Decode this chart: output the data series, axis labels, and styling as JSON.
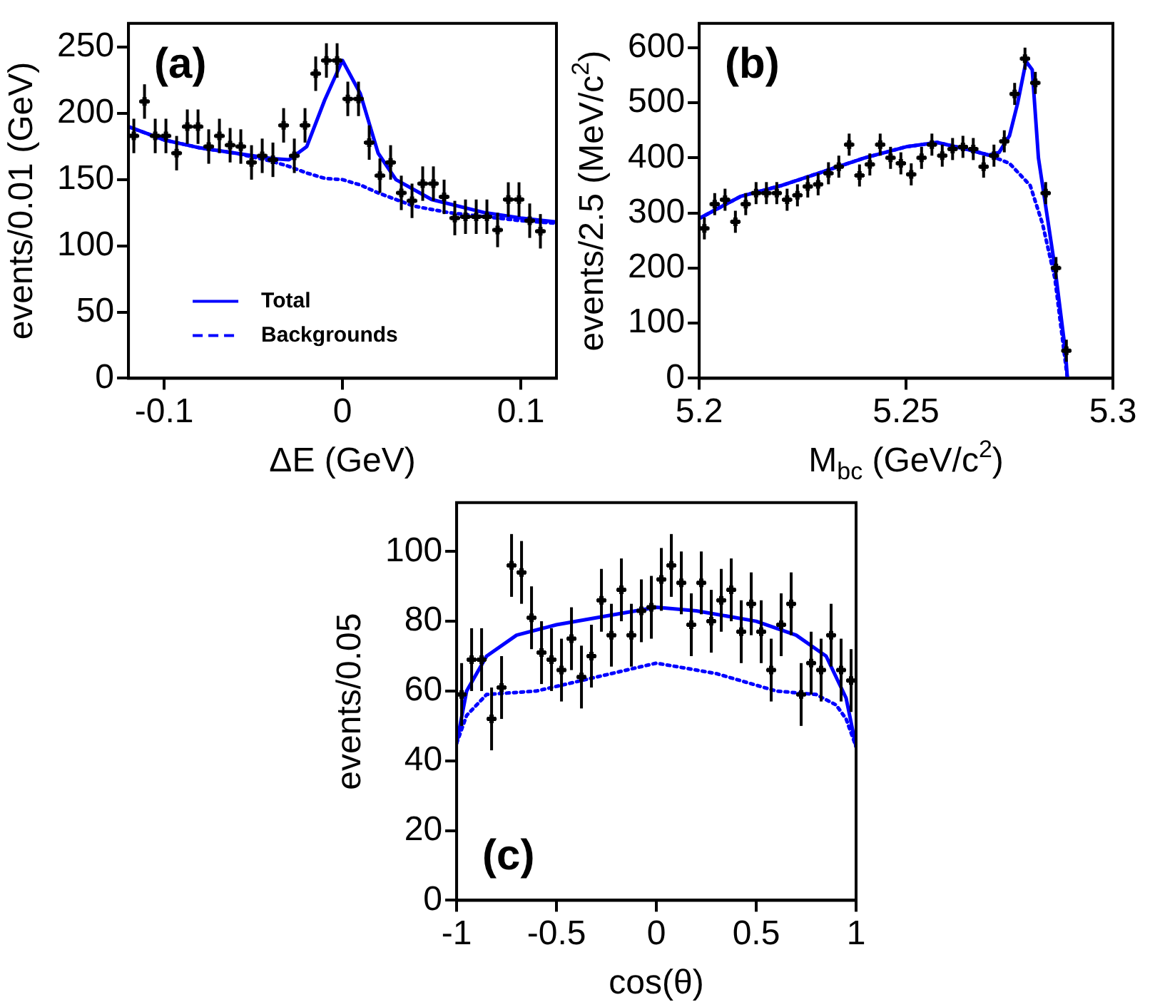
{
  "chart_data": [
    {
      "type": "scatter",
      "xlabel": "ΔE (GeV)",
      "ylabel": "events/0.01 (GeV)",
      "annotations": [
        "(a)"
      ],
      "xlim": [
        -0.12,
        0.12
      ],
      "ylim": [
        0,
        268
      ],
      "xticks": [
        -0.1,
        0,
        0.1
      ],
      "yticks": [
        0,
        50,
        100,
        150,
        200,
        250
      ],
      "grid": false,
      "legend": "bottom left",
      "series": [
        {
          "type": "scatter",
          "marker": "cross",
          "color": "#000000",
          "x": [
            -0.117,
            -0.111,
            -0.105,
            -0.099,
            -0.093,
            -0.087,
            -0.081,
            -0.075,
            -0.069,
            -0.063,
            -0.057,
            -0.051,
            -0.045,
            -0.039,
            -0.033,
            -0.027,
            -0.021,
            -0.015,
            -0.009,
            -0.003,
            0.003,
            0.009,
            0.015,
            0.021,
            0.027,
            0.033,
            0.039,
            0.045,
            0.051,
            0.057,
            0.063,
            0.069,
            0.075,
            0.081,
            0.087,
            0.093,
            0.099,
            0.105,
            0.111
          ],
          "values": [
            183,
            209,
            183,
            183,
            170,
            190,
            190,
            175,
            183,
            176,
            175,
            163,
            168,
            165,
            191,
            168,
            191,
            230,
            240,
            240,
            211,
            211,
            178,
            153,
            163,
            140,
            134,
            147,
            147,
            137,
            121,
            122,
            122,
            122,
            112,
            135,
            135,
            119,
            111
          ],
          "errors": [
            13,
            13,
            13,
            13,
            13,
            13,
            13,
            13,
            13,
            13,
            13,
            13,
            13,
            13,
            13,
            13,
            13,
            13,
            13,
            13,
            13,
            13,
            13,
            13,
            13,
            13,
            13,
            13,
            13,
            13,
            13,
            13,
            13,
            13,
            13,
            13,
            13,
            13,
            13
          ],
          "xerrors": [
            0.003,
            0.003,
            0.003,
            0.003,
            0.003,
            0.003,
            0.003,
            0.003,
            0.003,
            0.003,
            0.003,
            0.003,
            0.003,
            0.003,
            0.003,
            0.003,
            0.003,
            0.003,
            0.003,
            0.003,
            0.003,
            0.003,
            0.003,
            0.003,
            0.003,
            0.003,
            0.003,
            0.003,
            0.003,
            0.003,
            0.003,
            0.003,
            0.003,
            0.003,
            0.003,
            0.003,
            0.003,
            0.003,
            0.003
          ]
        },
        {
          "type": "line",
          "name": "Total",
          "color": "#0000ff",
          "line_style": "solid",
          "x": [
            -0.12,
            -0.1,
            -0.08,
            -0.06,
            -0.04,
            -0.03,
            -0.02,
            -0.01,
            0,
            0.01,
            0.02,
            0.03,
            0.05,
            0.08,
            0.1,
            0.12
          ],
          "values": [
            190,
            180,
            174,
            170,
            166,
            165,
            175,
            210,
            240,
            215,
            170,
            150,
            135,
            125,
            121,
            118
          ]
        },
        {
          "type": "line",
          "name": "Backgrounds",
          "color": "#0000ff",
          "line_style": "dotted",
          "x": [
            -0.12,
            -0.1,
            -0.08,
            -0.06,
            -0.04,
            -0.03,
            -0.02,
            -0.01,
            0,
            0.01,
            0.02,
            0.04,
            0.06,
            0.08,
            0.1,
            0.12
          ],
          "values": [
            190,
            180,
            174,
            170,
            164,
            160,
            155,
            151,
            150,
            146,
            140,
            130,
            125,
            122,
            119,
            117
          ]
        }
      ]
    },
    {
      "type": "scatter",
      "xlabel": "M$_{bc}$ (GeV/c$^{2}$)",
      "ylabel": "events/2.5 (MeV/c$^{2}$)",
      "annotations": [
        "(b)"
      ],
      "xlim": [
        5.2,
        5.3
      ],
      "ylim": [
        0,
        644
      ],
      "xticks": [
        5.2,
        5.25,
        5.3
      ],
      "yticks": [
        0,
        100,
        200,
        300,
        400,
        500,
        600
      ],
      "grid": false,
      "series": [
        {
          "type": "scatter",
          "marker": "cross",
          "color": "#000000",
          "x": [
            5.20125,
            5.20375,
            5.20625,
            5.20875,
            5.21125,
            5.21375,
            5.21625,
            5.21875,
            5.22125,
            5.22375,
            5.22625,
            5.22875,
            5.23125,
            5.23375,
            5.23625,
            5.23875,
            5.24125,
            5.24375,
            5.24625,
            5.24875,
            5.25125,
            5.25375,
            5.25625,
            5.25875,
            5.26125,
            5.26375,
            5.26625,
            5.26875,
            5.27125,
            5.27375,
            5.27625,
            5.27875,
            5.28125,
            5.28375,
            5.28625,
            5.28875
          ],
          "values": [
            272,
            316,
            324,
            284,
            316,
            336,
            336,
            336,
            324,
            332,
            348,
            352,
            372,
            384,
            424,
            368,
            388,
            424,
            400,
            390,
            370,
            400,
            424,
            404,
            416,
            420,
            416,
            384,
            404,
            430,
            516,
            580,
            536,
            336,
            200,
            50
          ],
          "errors": [
            20,
            20,
            20,
            20,
            20,
            20,
            20,
            20,
            20,
            20,
            20,
            20,
            20,
            20,
            20,
            20,
            20,
            20,
            20,
            20,
            20,
            20,
            20,
            20,
            20,
            20,
            20,
            20,
            20,
            20,
            20,
            20,
            20,
            20,
            20,
            20
          ],
          "xerrors": [
            0.00125,
            0.00125,
            0.00125,
            0.00125,
            0.00125,
            0.00125,
            0.00125,
            0.00125,
            0.00125,
            0.00125,
            0.00125,
            0.00125,
            0.00125,
            0.00125,
            0.00125,
            0.00125,
            0.00125,
            0.00125,
            0.00125,
            0.00125,
            0.00125,
            0.00125,
            0.00125,
            0.00125,
            0.00125,
            0.00125,
            0.00125,
            0.00125,
            0.00125,
            0.00125,
            0.00125,
            0.00125,
            0.00125,
            0.00125,
            0.00125,
            0.00125
          ]
        },
        {
          "type": "line",
          "color": "#0000ff",
          "line_style": "solid",
          "x": [
            5.2,
            5.21,
            5.22,
            5.23,
            5.24,
            5.25,
            5.2575,
            5.265,
            5.27,
            5.2725,
            5.275,
            5.277,
            5.279,
            5.2805,
            5.282,
            5.284,
            5.286,
            5.2885,
            5.289
          ],
          "values": [
            290,
            330,
            350,
            375,
            400,
            420,
            428,
            415,
            405,
            410,
            440,
            500,
            575,
            560,
            400,
            300,
            200,
            50,
            0
          ]
        },
        {
          "type": "line",
          "color": "#0000ff",
          "line_style": "dotted",
          "x": [
            5.2,
            5.21,
            5.22,
            5.23,
            5.24,
            5.25,
            5.2575,
            5.265,
            5.27,
            5.275,
            5.28,
            5.283,
            5.286,
            5.289
          ],
          "values": [
            290,
            330,
            350,
            375,
            400,
            420,
            428,
            415,
            405,
            390,
            350,
            280,
            180,
            0
          ]
        }
      ]
    },
    {
      "type": "scatter",
      "xlabel": "cos(θ)",
      "ylabel": "events/0.05",
      "annotations": [
        "(c)"
      ],
      "xlim": [
        -1,
        1
      ],
      "ylim": [
        0,
        114
      ],
      "xticks": [
        -1,
        -0.5,
        0,
        0.5,
        1
      ],
      "yticks": [
        0,
        20,
        40,
        60,
        80,
        100
      ],
      "grid": false,
      "series": [
        {
          "type": "scatter",
          "marker": "cross",
          "color": "#000000",
          "x": [
            -0.975,
            -0.925,
            -0.875,
            -0.825,
            -0.775,
            -0.725,
            -0.675,
            -0.625,
            -0.575,
            -0.525,
            -0.475,
            -0.425,
            -0.375,
            -0.325,
            -0.275,
            -0.225,
            -0.175,
            -0.125,
            -0.075,
            -0.025,
            0.025,
            0.075,
            0.125,
            0.175,
            0.225,
            0.275,
            0.325,
            0.375,
            0.425,
            0.475,
            0.525,
            0.575,
            0.625,
            0.675,
            0.725,
            0.775,
            0.825,
            0.875,
            0.925,
            0.975
          ],
          "values": [
            59,
            69,
            69,
            52,
            61,
            96,
            94,
            81,
            71,
            69,
            66,
            75,
            64,
            70,
            86,
            76,
            89,
            76,
            83,
            84,
            92,
            96,
            91,
            79,
            91,
            80,
            86,
            89,
            77,
            85,
            77,
            66,
            79,
            85,
            59,
            68,
            66,
            76,
            66,
            63
          ],
          "errors": [
            9,
            9,
            9,
            9,
            9,
            9,
            9,
            9,
            9,
            9,
            9,
            9,
            9,
            9,
            9,
            9,
            9,
            9,
            9,
            9,
            9,
            9,
            9,
            9,
            9,
            9,
            9,
            9,
            9,
            9,
            9,
            9,
            9,
            9,
            9,
            9,
            9,
            9,
            9,
            9
          ],
          "xerrors": [
            0.025,
            0.025,
            0.025,
            0.025,
            0.025,
            0.025,
            0.025,
            0.025,
            0.025,
            0.025,
            0.025,
            0.025,
            0.025,
            0.025,
            0.025,
            0.025,
            0.025,
            0.025,
            0.025,
            0.025,
            0.025,
            0.025,
            0.025,
            0.025,
            0.025,
            0.025,
            0.025,
            0.025,
            0.025,
            0.025,
            0.025,
            0.025,
            0.025,
            0.025,
            0.025,
            0.025,
            0.025,
            0.025,
            0.025,
            0.025
          ]
        },
        {
          "type": "line",
          "color": "#0000ff",
          "line_style": "solid",
          "x": [
            -1,
            -0.95,
            -0.85,
            -0.7,
            -0.5,
            -0.2,
            0,
            0.2,
            0.5,
            0.7,
            0.85,
            0.95,
            1
          ],
          "values": [
            45,
            60,
            70,
            76,
            79,
            82,
            84,
            83,
            80,
            76,
            70,
            58,
            44
          ]
        },
        {
          "type": "line",
          "color": "#0000ff",
          "line_style": "dotted",
          "x": [
            -1,
            -0.95,
            -0.85,
            -0.6,
            -0.3,
            0,
            0.3,
            0.6,
            0.8,
            0.9,
            0.95,
            1
          ],
          "values": [
            45,
            53,
            59,
            60,
            64,
            68,
            65,
            60,
            59,
            56,
            52,
            44
          ]
        }
      ]
    }
  ]
}
